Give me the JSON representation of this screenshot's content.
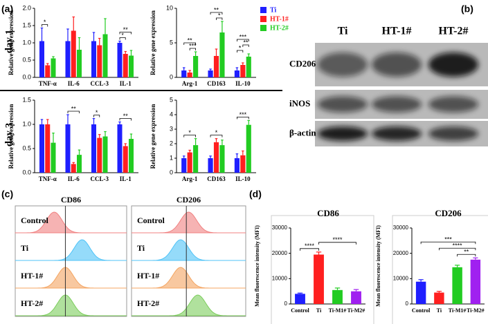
{
  "panel_labels": [
    "(a)",
    "(b)",
    "(c)",
    "(d)"
  ],
  "day_labels": [
    "day 1",
    "day 3"
  ],
  "legend": [
    {
      "name": "Ti",
      "color": "#1f1fff"
    },
    {
      "name": "HT-1#",
      "color": "#ff1f1f"
    },
    {
      "name": "HT-2#",
      "color": "#22cc22"
    }
  ],
  "blot": {
    "columns": [
      "Ti",
      "HT-1#",
      "HT-2#"
    ],
    "rows": [
      "CD206",
      "iNOS",
      "β-actin"
    ]
  },
  "flow": {
    "columns": [
      "CD86",
      "CD206"
    ],
    "rows": [
      "Control",
      "Ti",
      "HT-1#",
      "HT-2#"
    ],
    "colors": [
      "#f08080",
      "#4fc3f7",
      "#f4a460",
      "#7ccd5c"
    ]
  },
  "chart_data": [
    {
      "type": "bar",
      "ylabel": "Relative gene expression",
      "categories": [
        "TNF-α",
        "IL-6",
        "CCL-3",
        "IL-1"
      ],
      "series": [
        {
          "values": [
            1.05,
            1.05,
            1.05,
            1.0
          ],
          "errors": [
            0.38,
            0.35,
            0.25,
            0.05
          ]
        },
        {
          "values": [
            0.35,
            1.35,
            0.93,
            0.68
          ],
          "errors": [
            0.05,
            0.4,
            0.2,
            0.07
          ]
        },
        {
          "values": [
            0.55,
            0.8,
            1.25,
            0.63
          ],
          "errors": [
            0.05,
            0.35,
            0.45,
            0.15
          ]
        }
      ],
      "ylim": [
        0,
        2
      ],
      "yticks": [
        {
          "value": 0,
          "label": "0.0"
        },
        {
          "value": 0.5,
          "label": "0.5"
        },
        {
          "value": 1,
          "label": "1.0"
        },
        {
          "value": 1.5,
          "label": "1.5"
        },
        {
          "value": 2,
          "label": "2.0"
        }
      ],
      "significance": [
        {
          "label": "*",
          "category": 0,
          "series": [
            0,
            1
          ]
        },
        {
          "label": "*",
          "category": 3,
          "series": [
            0,
            1
          ]
        },
        {
          "label": "**",
          "category": 3,
          "series": [
            0,
            2
          ]
        }
      ]
    },
    {
      "type": "bar",
      "ylabel": "Relative gene expression",
      "categories": [
        "Arg-1",
        "CD163",
        "IL-10"
      ],
      "series": [
        {
          "values": [
            1.0,
            1.0,
            1.0
          ],
          "errors": [
            0.4,
            0.2,
            0.4
          ]
        },
        {
          "values": [
            0.7,
            3.1,
            1.8
          ],
          "errors": [
            0.3,
            1.0,
            0.3
          ]
        },
        {
          "values": [
            3.1,
            6.5,
            3.0
          ],
          "errors": [
            0.6,
            1.6,
            0.4
          ]
        }
      ],
      "ylim": [
        0,
        10
      ],
      "yticks": [
        0,
        5,
        10
      ],
      "significance": [
        {
          "label": "***",
          "category": 0,
          "series": [
            1,
            2
          ]
        },
        {
          "label": "**",
          "category": 0,
          "series": [
            0,
            2
          ]
        },
        {
          "label": "*",
          "category": 1,
          "series": [
            1,
            2
          ]
        },
        {
          "label": "**",
          "category": 1,
          "series": [
            0,
            2
          ]
        },
        {
          "label": "*",
          "category": 2,
          "series": [
            0,
            1
          ]
        },
        {
          "label": "**",
          "category": 2,
          "series": [
            1,
            2
          ]
        },
        {
          "label": "***",
          "category": 2,
          "series": [
            0,
            2
          ]
        }
      ]
    },
    {
      "type": "bar",
      "ylabel": "Relative gene expression",
      "categories": [
        "TNF-α",
        "IL-6",
        "CCL-3",
        "IL-1"
      ],
      "series": [
        {
          "values": [
            1.0,
            1.0,
            1.0,
            1.0
          ],
          "errors": [
            0.1,
            0.2,
            0.12,
            0.05
          ]
        },
        {
          "values": [
            1.0,
            0.18,
            0.72,
            0.55
          ],
          "errors": [
            0.1,
            0.03,
            0.07,
            0.05
          ]
        },
        {
          "values": [
            0.62,
            0.37,
            0.75,
            0.7
          ],
          "errors": [
            0.2,
            0.1,
            0.1,
            0.1
          ]
        }
      ],
      "ylim": [
        0,
        1.5
      ],
      "yticks": [
        {
          "value": 0,
          "label": "0.0"
        },
        {
          "value": 0.5,
          "label": "0.5"
        },
        {
          "value": 1,
          "label": "1.0"
        },
        {
          "value": 1.5,
          "label": "1.5"
        }
      ],
      "significance": [
        {
          "label": "**",
          "category": 1,
          "series": [
            0,
            2
          ]
        },
        {
          "label": "*",
          "category": 2,
          "series": [
            0,
            1
          ]
        },
        {
          "label": "**",
          "category": 3,
          "series": [
            0,
            2
          ]
        }
      ]
    },
    {
      "type": "bar",
      "ylabel": "Relative gene expression",
      "categories": [
        "Arg-1",
        "CD163",
        "IL-10"
      ],
      "series": [
        {
          "values": [
            1.0,
            1.0,
            1.0
          ],
          "errors": [
            0.15,
            0.15,
            0.3
          ]
        },
        {
          "values": [
            1.4,
            2.1,
            1.2
          ],
          "errors": [
            0.15,
            0.25,
            0.3
          ]
        },
        {
          "values": [
            1.9,
            1.9,
            3.3
          ],
          "errors": [
            0.45,
            0.35,
            0.3
          ]
        }
      ],
      "ylim": [
        0,
        5
      ],
      "yticks": [
        0,
        1,
        2,
        3,
        4,
        5
      ],
      "significance": [
        {
          "label": "*",
          "category": 0,
          "series": [
            0,
            2
          ]
        },
        {
          "label": "*",
          "category": 1,
          "series": [
            0,
            2
          ]
        },
        {
          "label": "***",
          "category": 2,
          "series": [
            0,
            2
          ]
        }
      ]
    },
    {
      "type": "bar",
      "title": "CD86",
      "ylabel": "Mean fluorescence intensity (MFI)",
      "categories": [
        "Control",
        "Ti",
        "Ti-M1#",
        "Ti-M2#"
      ],
      "values": [
        4000,
        19500,
        5500,
        5000
      ],
      "errors": [
        300,
        1000,
        800,
        700
      ],
      "colors": [
        "#1f1fff",
        "#ff1f1f",
        "#22cc22",
        "#a020f0"
      ],
      "ylim": [
        0,
        30000
      ],
      "yticks": [
        0,
        10000,
        20000,
        30000
      ],
      "significance": [
        {
          "label": "****",
          "categories": [
            0,
            1
          ]
        },
        {
          "label": "****",
          "categories": [
            1,
            3
          ]
        }
      ]
    },
    {
      "type": "bar",
      "title": "CD206",
      "ylabel": "Mean fluorescence intensity (MFI)",
      "categories": [
        "Control",
        "Ti",
        "Ti-M1#",
        "Ti-M2#"
      ],
      "values": [
        8800,
        4500,
        14500,
        17500
      ],
      "errors": [
        800,
        500,
        800,
        700
      ],
      "colors": [
        "#1f1fff",
        "#ff1f1f",
        "#22cc22",
        "#a020f0"
      ],
      "ylim": [
        0,
        30000
      ],
      "yticks": [
        0,
        10000,
        20000,
        30000
      ],
      "significance": [
        {
          "label": "**",
          "categories": [
            2,
            3
          ]
        },
        {
          "label": "****",
          "categories": [
            1,
            3
          ]
        },
        {
          "label": "***",
          "categories": [
            0,
            3
          ]
        }
      ]
    }
  ]
}
